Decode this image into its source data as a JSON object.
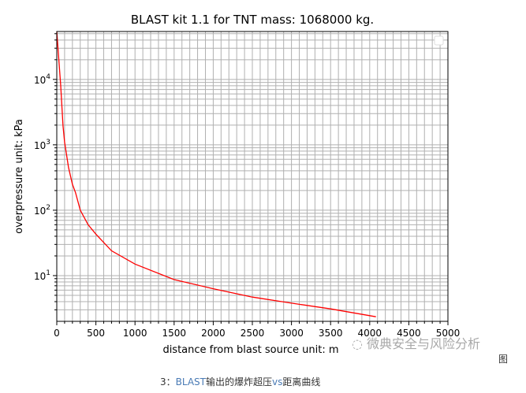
{
  "chart_data": {
    "type": "line",
    "title": "BLAST kit 1.1 for TNT mass:  1068000 kg.",
    "xlabel": "distance from blast source  unit: m",
    "ylabel": "overpressure unit: kPa",
    "xlim": [
      0,
      5000
    ],
    "ylim": [
      2,
      54000
    ],
    "yscale": "log",
    "grid": true,
    "grid_minor": true,
    "legend": "top-right (empty)",
    "x_ticks": [
      "0",
      "500",
      "1000",
      "1500",
      "2000",
      "2500",
      "3000",
      "3500",
      "4000",
      "4500",
      "5000"
    ],
    "y_ticks": [
      {
        "base": "10",
        "exp": "1",
        "value": 10
      },
      {
        "base": "10",
        "exp": "2",
        "value": 100
      },
      {
        "base": "10",
        "exp": "3",
        "value": 1000
      },
      {
        "base": "10",
        "exp": "4",
        "value": 10000
      }
    ],
    "series": [
      {
        "color": "#ff0000",
        "x": [
          0,
          50,
          80,
          100,
          150,
          200,
          240,
          300,
          400,
          500,
          700,
          1000,
          1500,
          2000,
          2500,
          3000,
          3500,
          4080
        ],
        "y": [
          54000,
          8000,
          1950,
          1100,
          450,
          250,
          185,
          100,
          60,
          43,
          24,
          15,
          8.7,
          6.3,
          4.7,
          3.8,
          3.1,
          2.35
        ]
      }
    ]
  },
  "watermark": {
    "text": "微典安全与风险分析",
    "icon": "wechat-icon"
  },
  "caption": {
    "prefix": "图",
    "number": "3：",
    "highlight": "BLAST",
    "text": "输出的爆炸超压",
    "vs": "vs",
    "rest": "距离曲线"
  }
}
